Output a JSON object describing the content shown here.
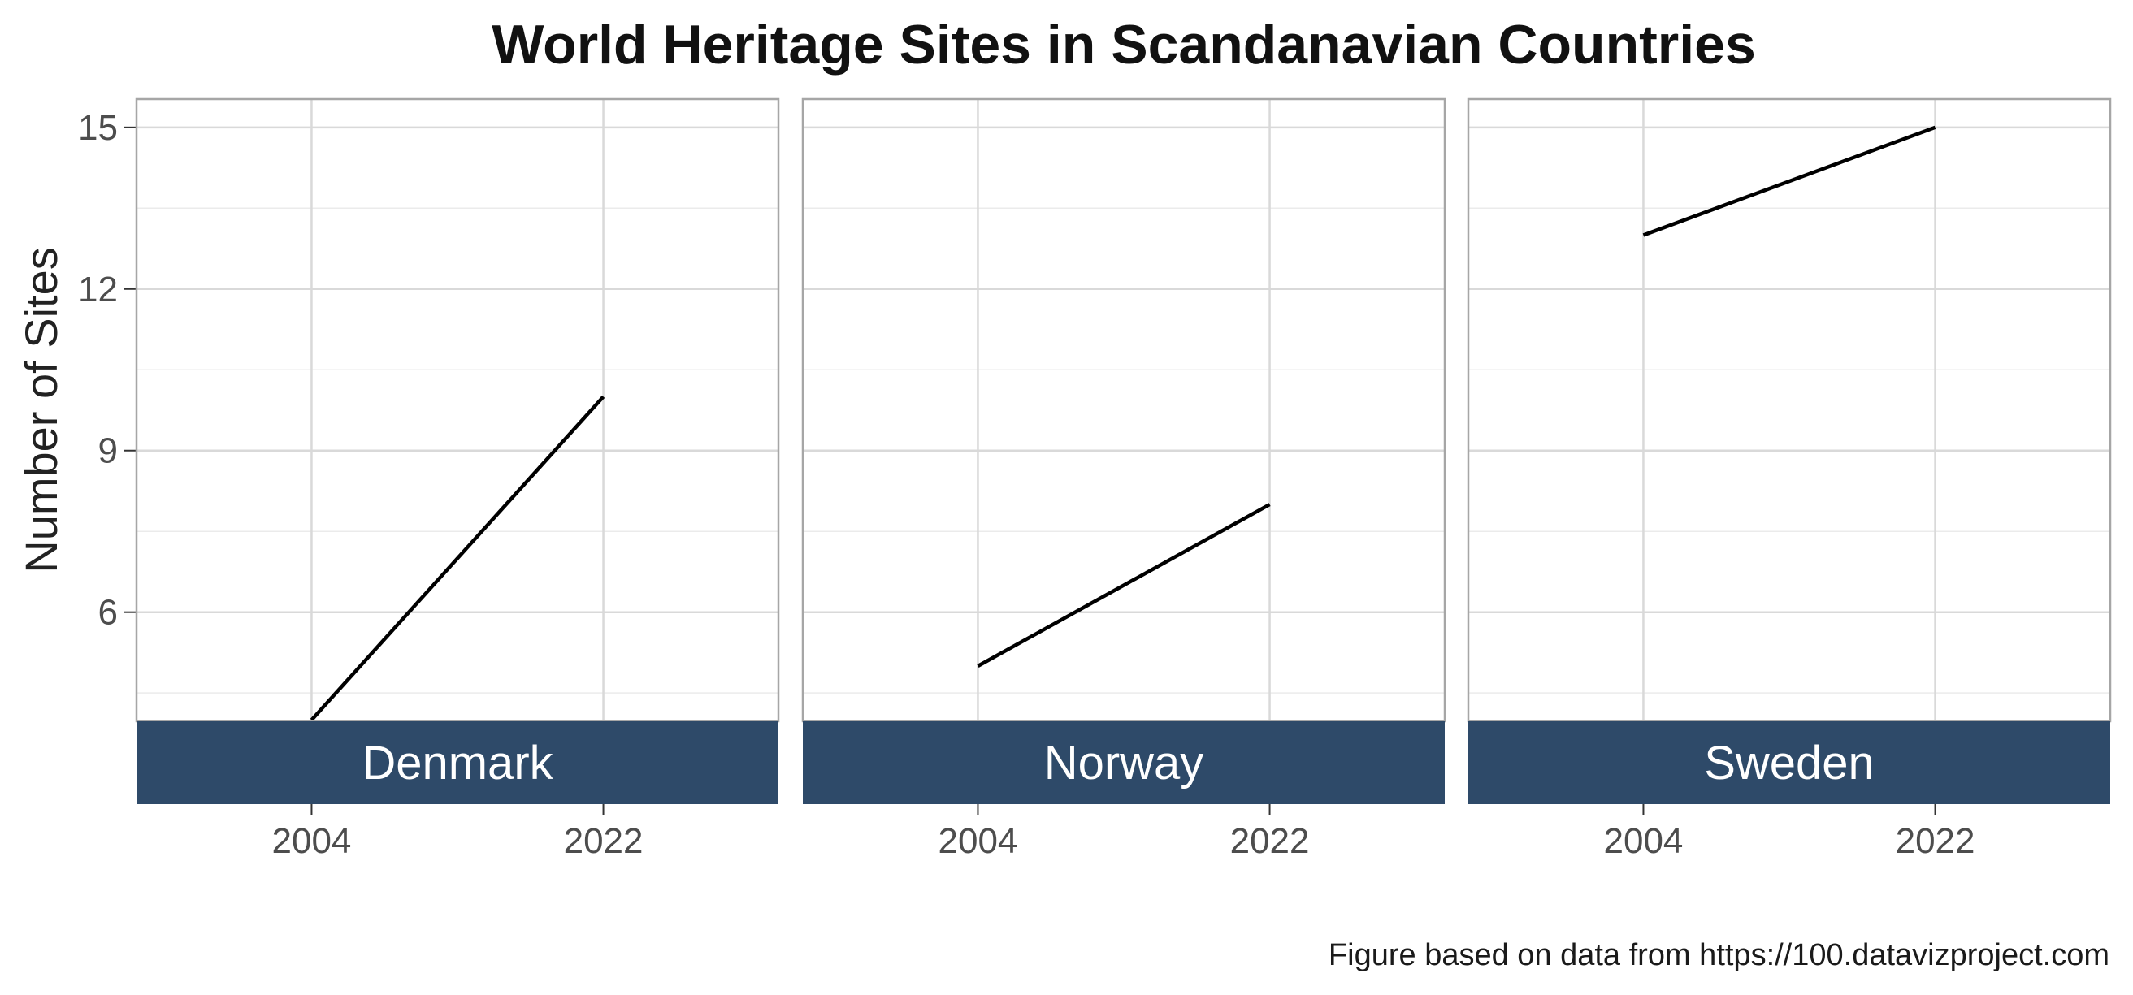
{
  "chart_data": {
    "type": "line",
    "title": "World Heritage Sites in Scandanavian Countries",
    "ylabel": "Number of Sites",
    "xlabel": "",
    "caption": "Figure based on data from https://100.datavizproject.com",
    "x_ticks": [
      2004,
      2022
    ],
    "y_ticks": [
      6,
      9,
      12,
      15
    ],
    "xlim": [
      1993.2,
      2032.8
    ],
    "ylim": [
      3.975,
      15.525
    ],
    "grid": true,
    "line_color": "#000000",
    "strip_color": "#2e4a69",
    "panels": [
      {
        "name": "Denmark",
        "x": [
          2004,
          2022
        ],
        "y": [
          4,
          10
        ]
      },
      {
        "name": "Norway",
        "x": [
          2004,
          2022
        ],
        "y": [
          5,
          8
        ]
      },
      {
        "name": "Sweden",
        "x": [
          2004,
          2022
        ],
        "y": [
          13,
          15
        ]
      }
    ]
  }
}
